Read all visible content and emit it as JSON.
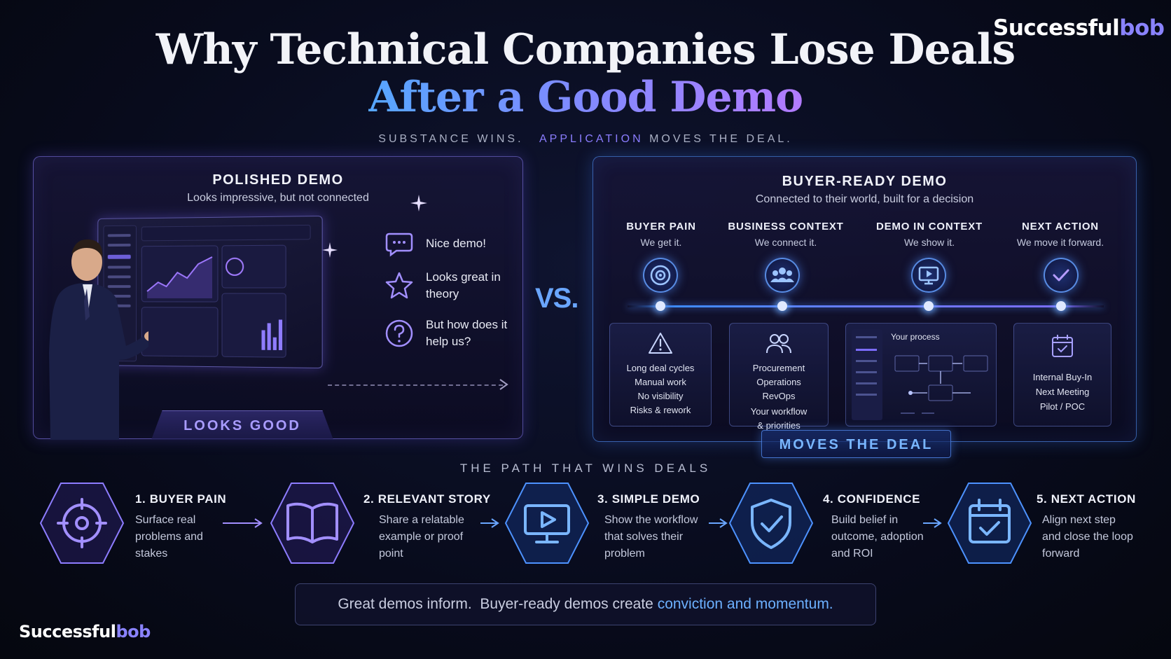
{
  "brand": {
    "part1": "Successful",
    "part2": "bob"
  },
  "header": {
    "title_line1": "Why Technical Companies Lose Deals",
    "title_line2": "After a Good Demo",
    "tagline_part1": "SUBSTANCE WINS.",
    "tagline_accent": "APPLICATION",
    "tagline_part2": "MOVES THE DEAL."
  },
  "left_panel": {
    "title": "POLISHED DEMO",
    "subtitle": "Looks impressive, but not connected",
    "feedback": [
      {
        "icon": "speech-bubble-icon",
        "text": "Nice demo!"
      },
      {
        "icon": "star-icon",
        "text": "Looks great in theory"
      },
      {
        "icon": "question-icon",
        "text": "But how does it help us?"
      }
    ],
    "badge": "LOOKS GOOD"
  },
  "vs_label": "VS.",
  "right_panel": {
    "title": "BUYER-READY DEMO",
    "subtitle": "Connected to their world, built for a decision",
    "columns": [
      {
        "heading": "BUYER PAIN",
        "sub": "We get it.",
        "icon": "target-icon"
      },
      {
        "heading": "BUSINESS CONTEXT",
        "sub": "We connect it.",
        "icon": "team-icon"
      },
      {
        "heading": "DEMO IN CONTEXT",
        "sub": "We show it.",
        "icon": "monitor-play-icon"
      },
      {
        "heading": "NEXT ACTION",
        "sub": "We move it forward.",
        "icon": "check-icon"
      }
    ],
    "cards": {
      "pain": [
        "Long deal cycles",
        "Manual work",
        "No visibility",
        "Risks & rework"
      ],
      "context": [
        "Procurement",
        "Operations",
        "RevOps",
        "Your workflow",
        "& priorities"
      ],
      "demo_label": "Your process",
      "action": [
        "Internal Buy-In",
        "Next Meeting",
        "Pilot / POC"
      ]
    },
    "badge": "MOVES THE DEAL"
  },
  "path": {
    "title": "THE PATH THAT WINS DEALS",
    "steps": [
      {
        "heading": "1. BUYER PAIN",
        "desc": [
          "Surface real",
          "problems and",
          "stakes"
        ],
        "icon": "crosshair-icon"
      },
      {
        "heading": "2. RELEVANT STORY",
        "desc": [
          "Share a relatable",
          "example or proof",
          "point"
        ],
        "icon": "book-icon"
      },
      {
        "heading": "3. SIMPLE DEMO",
        "desc": [
          "Show the workflow",
          "that solves their",
          "problem"
        ],
        "icon": "monitor-play-icon"
      },
      {
        "heading": "4. CONFIDENCE",
        "desc": [
          "Build belief in",
          "outcome, adoption",
          "and ROI"
        ],
        "icon": "shield-check-icon"
      },
      {
        "heading": "5. NEXT ACTION",
        "desc": [
          "Align next step",
          "and close the loop",
          "forward"
        ],
        "icon": "calendar-check-icon"
      }
    ]
  },
  "footer": {
    "text": "Great demos inform.  Buyer-ready demos create ",
    "highlight": "conviction and momentum."
  },
  "colors": {
    "background": "#080b1c",
    "accent_purple": "#8a83ff",
    "accent_blue": "#6cb0ff"
  }
}
